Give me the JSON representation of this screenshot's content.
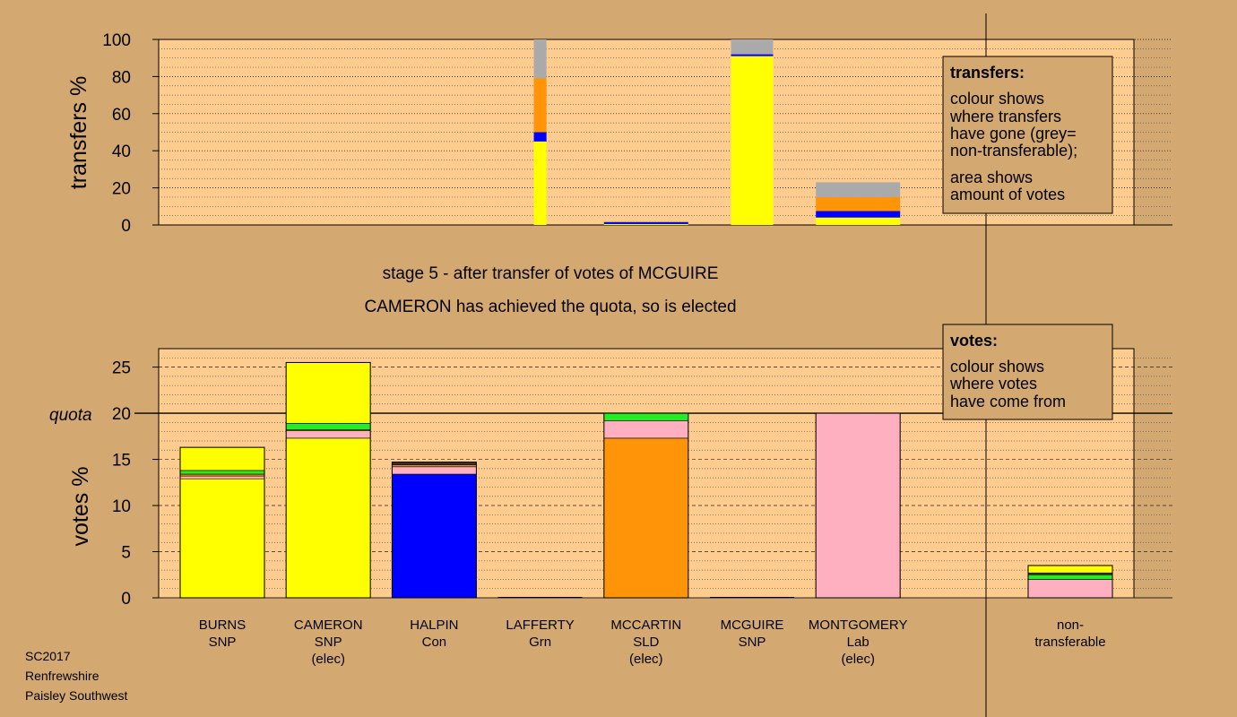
{
  "colors": {
    "background": "#d4a971",
    "plot_bg": "#ffcc8f",
    "SNP": "#ffff00",
    "Con": "#0000ff",
    "SLD": "#ff9408",
    "Lab": "#ffb0c0",
    "Grn": "#22ee22",
    "other": "#333333",
    "nontransferable": "#aaaaaa"
  },
  "titles": {
    "stage": "stage 5 - after transfer of votes of MCGUIRE",
    "status": "CAMERON has achieved the quota, so is elected"
  },
  "footer": [
    "SC2017",
    "Renfrewshire",
    "Paisley Southwest"
  ],
  "legend_transfers": {
    "title": "transfers:",
    "lines1": [
      "colour shows",
      "where transfers",
      "have gone (grey=",
      "non-transferable);"
    ],
    "lines2": [
      "area shows",
      "amount of votes"
    ]
  },
  "legend_votes": {
    "title": "votes:",
    "lines": [
      "colour shows",
      "where votes",
      "have come from"
    ]
  },
  "chart_data": [
    {
      "type": "bar",
      "stacked": true,
      "ylabel": "transfers %",
      "ylim": [
        0,
        100
      ],
      "yticks": [
        0,
        20,
        40,
        60,
        80,
        100
      ],
      "grid": "dotted",
      "bars": [
        {
          "category": "BURNS",
          "width_share": 1.0,
          "segments": []
        },
        {
          "category": "CAMERON",
          "width_share": 1.0,
          "segments": []
        },
        {
          "category": "HALPIN",
          "width_share": 1.0,
          "segments": []
        },
        {
          "category": "LAFFERTY",
          "width_share": 0.15,
          "segments": [
            {
              "party": "SNP",
              "value": 45
            },
            {
              "party": "Con",
              "value": 5
            },
            {
              "party": "SLD",
              "value": 29
            },
            {
              "party": "nontransferable",
              "value": 21
            }
          ]
        },
        {
          "category": "MCCARTIN",
          "width_share": 1.0,
          "segments": [
            {
              "party": "SNP",
              "value": 0.5
            },
            {
              "party": "Con",
              "value": 1.0
            },
            {
              "party": "SLD",
              "value": 0.3
            },
            {
              "party": "nontransferable",
              "value": 0.2
            }
          ]
        },
        {
          "category": "MCGUIRE",
          "width_share": 0.5,
          "segments": [
            {
              "party": "SNP",
              "value": 91
            },
            {
              "party": "Con",
              "value": 1
            },
            {
              "party": "nontransferable",
              "value": 8
            }
          ]
        },
        {
          "category": "MONTGOMERY",
          "width_share": 1.0,
          "segments": [
            {
              "party": "SNP",
              "value": 4
            },
            {
              "party": "Con",
              "value": 3.5
            },
            {
              "party": "SLD",
              "value": 7.5
            },
            {
              "party": "nontransferable",
              "value": 8
            }
          ]
        }
      ]
    },
    {
      "type": "bar",
      "stacked": true,
      "ylabel": "votes %",
      "ylim": [
        0,
        27
      ],
      "yticks": [
        0,
        5,
        10,
        15,
        20,
        25
      ],
      "quota": 20,
      "quota_label": "quota",
      "grid": "dotted",
      "categories": [
        {
          "name": "BURNS",
          "party": "SNP",
          "note": ""
        },
        {
          "name": "CAMERON",
          "party": "SNP",
          "note": "(elec)"
        },
        {
          "name": "HALPIN",
          "party": "Con",
          "note": ""
        },
        {
          "name": "LAFFERTY",
          "party": "Grn",
          "note": ""
        },
        {
          "name": "MCCARTIN",
          "party": "SLD",
          "note": "(elec)"
        },
        {
          "name": "MCGUIRE",
          "party": "SNP",
          "note": ""
        },
        {
          "name": "MONTGOMERY",
          "party": "Lab",
          "note": "(elec)"
        }
      ],
      "bars": [
        {
          "category": "BURNS",
          "segments": [
            {
              "party": "SNP",
              "value": 12.9
            },
            {
              "party": "Lab",
              "value": 0.3
            },
            {
              "party": "SLD",
              "value": 0.2
            },
            {
              "party": "Grn",
              "value": 0.4
            },
            {
              "party": "SNP",
              "value": 2.5
            }
          ]
        },
        {
          "category": "CAMERON",
          "segments": [
            {
              "party": "SNP",
              "value": 17.3
            },
            {
              "party": "Lab",
              "value": 0.8
            },
            {
              "party": "SLD",
              "value": 0.1
            },
            {
              "party": "Grn",
              "value": 0.7
            },
            {
              "party": "SNP",
              "value": 6.6
            }
          ]
        },
        {
          "category": "HALPIN",
          "segments": [
            {
              "party": "Con",
              "value": 13.4
            },
            {
              "party": "Lab",
              "value": 0.8
            },
            {
              "party": "SLD",
              "value": 0.2
            },
            {
              "party": "other",
              "value": 0.3
            }
          ]
        },
        {
          "category": "LAFFERTY",
          "segments": []
        },
        {
          "category": "MCCARTIN",
          "segments": [
            {
              "party": "SLD",
              "value": 17.3
            },
            {
              "party": "Lab",
              "value": 1.9
            },
            {
              "party": "Grn",
              "value": 0.8
            }
          ]
        },
        {
          "category": "MCGUIRE",
          "segments": []
        },
        {
          "category": "MONTGOMERY",
          "segments": [
            {
              "party": "Lab",
              "value": 20.0
            }
          ]
        },
        {
          "category": "non-transferable",
          "segments": [
            {
              "party": "Lab",
              "value": 2.0
            },
            {
              "party": "Grn",
              "value": 0.5
            },
            {
              "party": "other",
              "value": 0.2
            },
            {
              "party": "SNP",
              "value": 0.8
            }
          ]
        }
      ],
      "nontransferable_label": [
        "non-",
        "transferable"
      ]
    }
  ]
}
